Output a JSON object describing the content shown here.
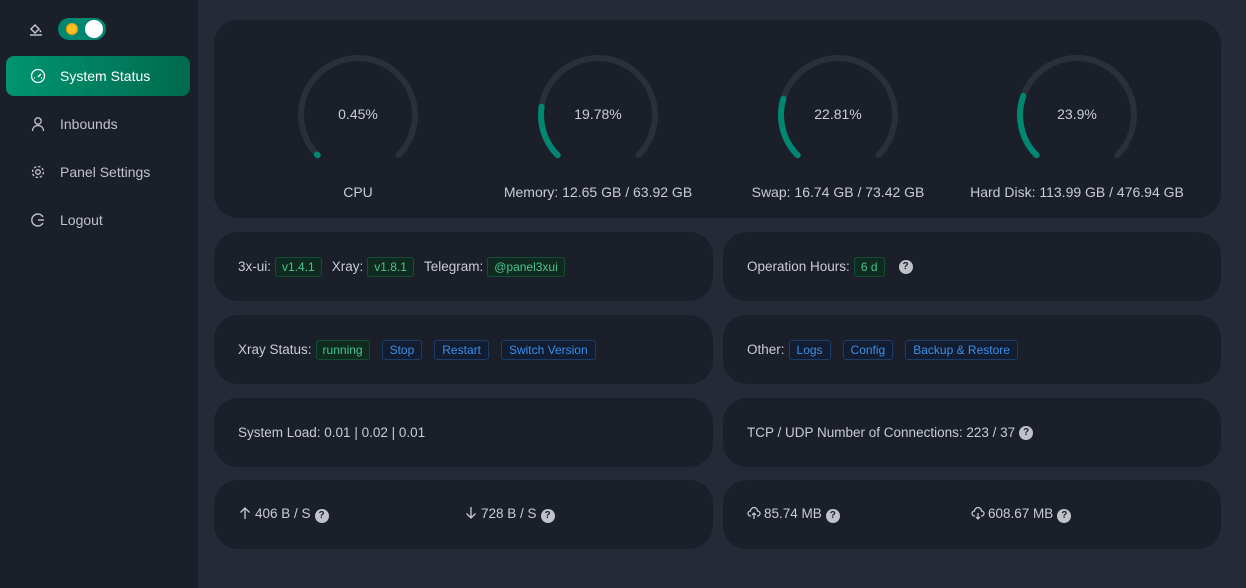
{
  "sidebar": {
    "items": [
      {
        "label": "System Status",
        "active": true
      },
      {
        "label": "Inbounds"
      },
      {
        "label": "Panel Settings"
      },
      {
        "label": "Logout"
      }
    ]
  },
  "gauges": [
    {
      "value": "0.45%",
      "percent": 0.45,
      "label": "CPU"
    },
    {
      "value": "19.78%",
      "percent": 19.78,
      "label": "Memory: 12.65 GB / 63.92 GB"
    },
    {
      "value": "22.81%",
      "percent": 22.81,
      "label": "Swap: 16.74 GB / 73.42 GB"
    },
    {
      "value": "23.9%",
      "percent": 23.9,
      "label": "Hard Disk: 113.99 GB / 476.94 GB"
    }
  ],
  "versions": {
    "ui_label": "3x-ui:",
    "ui": "v1.4.1",
    "xray_label": "Xray:",
    "xray": "v1.8.1",
    "tg_label": "Telegram:",
    "tg": "@panel3xui"
  },
  "uptime": {
    "label": "Operation Hours:",
    "value": "6 d"
  },
  "xray": {
    "label": "Xray Status:",
    "status": "running",
    "stop": "Stop",
    "restart": "Restart",
    "switch": "Switch Version"
  },
  "other": {
    "label": "Other:",
    "logs": "Logs",
    "config": "Config",
    "backup": "Backup & Restore"
  },
  "load": {
    "text": "System Load: 0.01 | 0.02 | 0.01"
  },
  "conn": {
    "text": "TCP / UDP Number of Connections: 223 / 37"
  },
  "net": {
    "up": "406 B / S",
    "down": "728 B / S",
    "sent": "85.74 MB",
    "recv": "608.67 MB"
  },
  "colors": {
    "accent": "#008771",
    "track": "#2a2f3a"
  }
}
